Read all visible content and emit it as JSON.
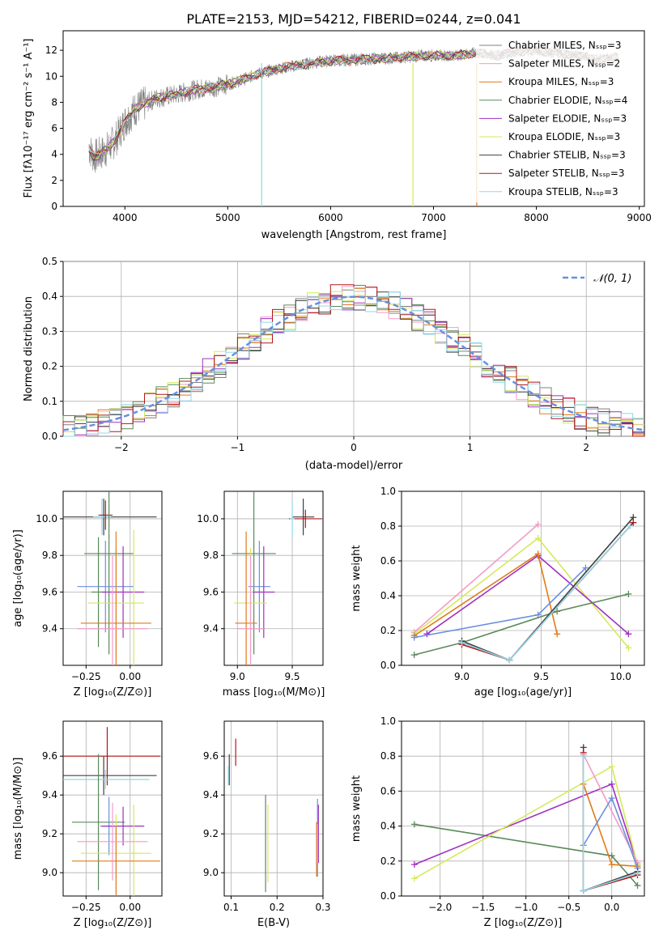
{
  "page": {
    "title": "PLATE=2153, MJD=54212, FIBERID=0244, z=0.041"
  },
  "colors": {
    "data": "#808080",
    "chabrier_miles": "#808080",
    "salpeter_miles": "#f39bc7",
    "kroupa_miles": "#e07b1a",
    "chabrier_elodie": "#5a8a5a",
    "salpeter_elodie": "#a030c0",
    "kroupa_elodie": "#d4ea5a",
    "chabrier_stelib": "#404040",
    "salpeter_stelib": "#b01818",
    "kroupa_stelib": "#8fd8e8",
    "blue": "#6a8fdf",
    "normal_curve": "#6a8fdf"
  },
  "chart_data": [
    {
      "id": "spectrum",
      "type": "line",
      "title": "PLATE=2153, MJD=54212, FIBERID=0244, z=0.041",
      "xlabel": "wavelength [Angstrom, rest frame]",
      "ylabel": "Flux [fλ10⁻¹⁷ erg cm⁻² s⁻¹ A⁻¹]",
      "xlim": [
        3400,
        9050
      ],
      "ylim": [
        0,
        13.5
      ],
      "xticks": [
        4000,
        5000,
        6000,
        7000,
        8000,
        9000
      ],
      "yticks": [
        0,
        2,
        4,
        6,
        8,
        10,
        12
      ],
      "grid": false,
      "legend_position": "right",
      "continuum": {
        "x": [
          3650,
          3700,
          3800,
          3900,
          4000,
          4100,
          4300,
          4500,
          4700,
          4900,
          5100,
          5300,
          5500,
          5800,
          6000,
          6300,
          6600,
          6900,
          7200,
          7400,
          7500,
          7600,
          7800,
          8000,
          8200,
          8400,
          8600,
          8800
        ],
        "y": [
          4.5,
          3.8,
          4.2,
          5.0,
          6.5,
          7.5,
          8.3,
          8.6,
          9.0,
          9.2,
          9.6,
          10.2,
          10.6,
          11.0,
          11.2,
          11.3,
          11.4,
          11.6,
          11.6,
          11.8,
          11.7,
          11.6,
          11.9,
          12.0,
          11.8,
          11.6,
          11.3,
          11.5
        ]
      },
      "series": [
        {
          "label": "Chabrier MILES, Nₛₛₚ=3",
          "color_key": "chabrier_miles"
        },
        {
          "label": "Salpeter MILES, Nₛₛₚ=2",
          "color_key": "salpeter_miles"
        },
        {
          "label": "Kroupa MILES, Nₛₛₚ=3",
          "color_key": "kroupa_miles"
        },
        {
          "label": "Chabrier ELODIE, Nₛₛₚ=4",
          "color_key": "chabrier_elodie"
        },
        {
          "label": "Salpeter ELODIE, Nₛₛₚ=3",
          "color_key": "salpeter_elodie"
        },
        {
          "label": "Kroupa ELODIE, Nₛₛₚ=3",
          "color_key": "kroupa_elodie"
        },
        {
          "label": "Chabrier STELIB, Nₛₛₚ=3",
          "color_key": "chabrier_stelib"
        },
        {
          "label": "Salpeter STELIB, Nₛₛₚ=3",
          "color_key": "salpeter_stelib"
        },
        {
          "label": "Kroupa STELIB, Nₛₛₚ=3",
          "color_key": "kroupa_stelib"
        }
      ]
    },
    {
      "id": "residuals",
      "type": "bar",
      "xlabel": "(data-model)/error",
      "ylabel": "Normed distribution",
      "xlim": [
        -2.5,
        2.5
      ],
      "ylim": [
        0,
        0.5
      ],
      "xticks": [
        -2,
        -1,
        0,
        1,
        2
      ],
      "yticks": [
        0.0,
        0.1,
        0.2,
        0.3,
        0.4,
        0.5
      ],
      "grid": true,
      "legend_position": "top-right",
      "normal_label": "𝒩(0, 1)"
    },
    {
      "id": "age_vs_Z",
      "type": "scatter",
      "xlabel": "Z [log₁₀(Z/Z⊙)]",
      "ylabel": "age  [log₁₀(age/yr)]",
      "xlim": [
        -0.38,
        0.18
      ],
      "ylim": [
        9.2,
        10.15
      ],
      "xticks": [
        -0.25,
        0.0
      ],
      "yticks": [
        9.4,
        9.6,
        9.8,
        10.0
      ],
      "grid": true,
      "points": [
        {
          "x": -0.15,
          "y": 10.01,
          "xerr": 0.3,
          "yerr": 0.1,
          "color_key": "chabrier_stelib"
        },
        {
          "x": -0.16,
          "y": 10.01,
          "xerr": 0.05,
          "yerr": 0.1,
          "color_key": "kroupa_stelib"
        },
        {
          "x": -0.14,
          "y": 10.02,
          "xerr": 0.04,
          "yerr": 0.08,
          "color_key": "salpeter_stelib"
        },
        {
          "x": -0.12,
          "y": 9.81,
          "xerr": 0.14,
          "yerr": 0.55,
          "color_key": "chabrier_elodie"
        },
        {
          "x": -0.18,
          "y": 9.6,
          "xerr": 0.04,
          "yerr": 0.3,
          "color_key": "chabrier_elodie"
        },
        {
          "x": -0.14,
          "y": 9.63,
          "xerr": 0.16,
          "yerr": 0.25,
          "color_key": "blue"
        },
        {
          "x": -0.04,
          "y": 9.6,
          "xerr": 0.12,
          "yerr": 0.25,
          "color_key": "salpeter_elodie"
        },
        {
          "x": -0.08,
          "y": 9.54,
          "xerr": 0.16,
          "yerr": 0.3,
          "color_key": "kroupa_elodie"
        },
        {
          "x": 0.02,
          "y": 9.54,
          "xerr": 0.02,
          "yerr": 0.4,
          "color_key": "kroupa_elodie"
        },
        {
          "x": -0.08,
          "y": 9.43,
          "xerr": 0.2,
          "yerr": 0.5,
          "color_key": "kroupa_miles"
        },
        {
          "x": -0.1,
          "y": 9.4,
          "xerr": 0.2,
          "yerr": 0.4,
          "color_key": "salpeter_miles"
        }
      ]
    },
    {
      "id": "age_vs_mass",
      "type": "scatter",
      "xlabel": "mass [log₁₀(M/M⊙)]",
      "ylabel": "",
      "xlim": [
        8.88,
        9.78
      ],
      "ylim": [
        9.2,
        10.15
      ],
      "xticks": [
        9.0,
        9.5
      ],
      "yticks": [
        9.4,
        9.6,
        9.8,
        10.0
      ],
      "grid": true,
      "points": [
        {
          "x": 9.6,
          "y": 10.01,
          "xerr": 0.1,
          "yerr": 0.1,
          "color_key": "chabrier_stelib"
        },
        {
          "x": 9.62,
          "y": 10.0,
          "xerr": 0.15,
          "yerr": 0.05,
          "color_key": "salpeter_stelib"
        },
        {
          "x": 9.5,
          "y": 10.0,
          "xerr": 0.02,
          "yerr": 0.1,
          "color_key": "kroupa_stelib"
        },
        {
          "x": 9.15,
          "y": 9.81,
          "xerr": 0.2,
          "yerr": 0.55,
          "color_key": "chabrier_elodie"
        },
        {
          "x": 9.2,
          "y": 9.63,
          "xerr": 0.1,
          "yerr": 0.25,
          "color_key": "blue"
        },
        {
          "x": 9.24,
          "y": 9.6,
          "xerr": 0.1,
          "yerr": 0.25,
          "color_key": "salpeter_elodie"
        },
        {
          "x": 9.12,
          "y": 9.54,
          "xerr": 0.15,
          "yerr": 0.3,
          "color_key": "kroupa_elodie"
        },
        {
          "x": 9.08,
          "y": 9.43,
          "xerr": 0.1,
          "yerr": 0.5,
          "color_key": "kroupa_miles"
        },
        {
          "x": 9.12,
          "y": 9.4,
          "xerr": 0.12,
          "yerr": 0.4,
          "color_key": "salpeter_miles"
        }
      ]
    },
    {
      "id": "weight_vs_age",
      "type": "line",
      "xlabel": "age  [log₁₀(age/yr)]",
      "ylabel": "mass weight",
      "xlim": [
        8.62,
        10.15
      ],
      "ylim": [
        0,
        1.0
      ],
      "xticks": [
        9.0,
        9.5,
        10.0
      ],
      "yticks": [
        0.0,
        0.2,
        0.4,
        0.6,
        0.8,
        1.0
      ],
      "grid": true,
      "series": [
        {
          "color_key": "salpeter_miles",
          "x": [
            8.7,
            9.48
          ],
          "y": [
            0.19,
            0.81
          ]
        },
        {
          "color_key": "kroupa_elodie",
          "x": [
            8.7,
            9.48,
            10.05
          ],
          "y": [
            0.18,
            0.73,
            0.1
          ]
        },
        {
          "color_key": "salpeter_elodie",
          "x": [
            8.78,
            9.48,
            10.05
          ],
          "y": [
            0.18,
            0.63,
            0.18
          ]
        },
        {
          "color_key": "kroupa_miles",
          "x": [
            8.7,
            9.48,
            9.6
          ],
          "y": [
            0.17,
            0.64,
            0.18
          ]
        },
        {
          "color_key": "blue",
          "x": [
            8.7,
            9.48,
            9.78
          ],
          "y": [
            0.16,
            0.29,
            0.56
          ]
        },
        {
          "color_key": "chabrier_elodie",
          "x": [
            8.7,
            9.0,
            9.6,
            10.05
          ],
          "y": [
            0.06,
            0.13,
            0.31,
            0.41
          ]
        },
        {
          "color_key": "chabrier_stelib",
          "x": [
            9.0,
            9.3,
            10.08
          ],
          "y": [
            0.14,
            0.03,
            0.85
          ]
        },
        {
          "color_key": "salpeter_stelib",
          "x": [
            9.0,
            9.3,
            10.08
          ],
          "y": [
            0.12,
            0.03,
            0.82
          ]
        },
        {
          "color_key": "kroupa_stelib",
          "x": [
            9.0,
            9.3,
            10.06
          ],
          "y": [
            0.13,
            0.03,
            0.8
          ]
        }
      ]
    },
    {
      "id": "mass_vs_Z",
      "type": "scatter",
      "xlabel": "Z [log₁₀(Z/Z⊙)]",
      "ylabel": "mass [log₁₀(M/M⊙)]",
      "xlim": [
        -0.38,
        0.18
      ],
      "ylim": [
        8.88,
        9.78
      ],
      "xticks": [
        -0.25,
        0.0
      ],
      "yticks": [
        9.0,
        9.2,
        9.4,
        9.6
      ],
      "grid": true,
      "points": [
        {
          "x": -0.13,
          "y": 9.6,
          "xerr": 0.3,
          "yerr": 0.15,
          "color_key": "salpeter_stelib"
        },
        {
          "x": -0.15,
          "y": 9.5,
          "xerr": 0.3,
          "yerr": 0.1,
          "color_key": "chabrier_stelib"
        },
        {
          "x": -0.14,
          "y": 9.48,
          "xerr": 0.25,
          "yerr": 0.05,
          "color_key": "kroupa_stelib"
        },
        {
          "x": -0.18,
          "y": 9.26,
          "xerr": 0.15,
          "yerr": 0.35,
          "color_key": "chabrier_elodie"
        },
        {
          "x": -0.12,
          "y": 9.24,
          "xerr": 0.05,
          "yerr": 0.15,
          "color_key": "blue"
        },
        {
          "x": -0.04,
          "y": 9.24,
          "xerr": 0.12,
          "yerr": 0.1,
          "color_key": "salpeter_elodie"
        },
        {
          "x": -0.08,
          "y": 9.1,
          "xerr": 0.2,
          "yerr": 0.2,
          "color_key": "kroupa_elodie"
        },
        {
          "x": 0.02,
          "y": 9.1,
          "xerr": 0.02,
          "yerr": 0.25,
          "color_key": "kroupa_elodie"
        },
        {
          "x": -0.08,
          "y": 9.06,
          "xerr": 0.25,
          "yerr": 0.18,
          "color_key": "kroupa_miles"
        },
        {
          "x": -0.1,
          "y": 9.16,
          "xerr": 0.2,
          "yerr": 0.2,
          "color_key": "salpeter_miles"
        }
      ]
    },
    {
      "id": "mass_vs_ebv",
      "type": "scatter",
      "xlabel": "E(B-V)",
      "ylabel": "",
      "xlim": [
        0.085,
        0.3
      ],
      "ylim": [
        8.88,
        9.78
      ],
      "xticks": [
        0.1,
        0.2,
        0.3
      ],
      "yticks": [
        9.0,
        9.2,
        9.4,
        9.6
      ],
      "grid": true,
      "points": [
        {
          "x": 0.11,
          "y": 9.62,
          "xerr": 0.0,
          "yerr": 0.07,
          "color_key": "salpeter_stelib"
        },
        {
          "x": 0.096,
          "y": 9.53,
          "xerr": 0.0,
          "yerr": 0.08,
          "color_key": "chabrier_stelib"
        },
        {
          "x": 0.094,
          "y": 9.5,
          "xerr": 0.0,
          "yerr": 0.05,
          "color_key": "kroupa_stelib"
        },
        {
          "x": 0.175,
          "y": 9.15,
          "xerr": 0.0,
          "yerr": 0.25,
          "color_key": "chabrier_elodie"
        },
        {
          "x": 0.18,
          "y": 9.15,
          "xerr": 0.0,
          "yerr": 0.2,
          "color_key": "kroupa_elodie"
        },
        {
          "x": 0.288,
          "y": 9.18,
          "xerr": 0.0,
          "yerr": 0.2,
          "color_key": "blue"
        },
        {
          "x": 0.29,
          "y": 9.2,
          "xerr": 0.0,
          "yerr": 0.15,
          "color_key": "salpeter_elodie"
        },
        {
          "x": 0.286,
          "y": 9.12,
          "xerr": 0.0,
          "yerr": 0.14,
          "color_key": "kroupa_miles"
        },
        {
          "x": 0.288,
          "y": 9.15,
          "xerr": 0.0,
          "yerr": 0.1,
          "color_key": "salpeter_miles"
        }
      ]
    },
    {
      "id": "weight_vs_Z",
      "type": "line",
      "xlabel": "Z [log₁₀(Z/Z⊙)]",
      "ylabel": "mass weight",
      "xlim": [
        -2.45,
        0.38
      ],
      "ylim": [
        0,
        1.0
      ],
      "xticks": [
        -2.0,
        -1.5,
        -1.0,
        -0.5,
        0.0
      ],
      "yticks": [
        0.0,
        0.2,
        0.4,
        0.6,
        0.8,
        1.0
      ],
      "grid": true,
      "series": [
        {
          "color_key": "chabrier_elodie",
          "x": [
            -2.3,
            0.0,
            0.3
          ],
          "y": [
            0.41,
            0.23,
            0.06
          ]
        },
        {
          "color_key": "salpeter_elodie",
          "x": [
            -2.3,
            0.0,
            0.3
          ],
          "y": [
            0.18,
            0.64,
            0.18
          ]
        },
        {
          "color_key": "kroupa_elodie",
          "x": [
            -2.3,
            0.0,
            0.3
          ],
          "y": [
            0.1,
            0.74,
            0.18
          ]
        },
        {
          "color_key": "salpeter_miles",
          "x": [
            -0.33,
            0.3
          ],
          "y": [
            0.81,
            0.19
          ]
        },
        {
          "color_key": "kroupa_miles",
          "x": [
            -0.33,
            0.0,
            0.3
          ],
          "y": [
            0.64,
            0.18,
            0.17
          ]
        },
        {
          "color_key": "blue",
          "x": [
            -0.33,
            0.0,
            0.3
          ],
          "y": [
            0.29,
            0.56,
            0.16
          ]
        },
        {
          "color_key": "chabrier_stelib",
          "x": [
            -0.33,
            -0.33,
            0.3
          ],
          "y": [
            0.85,
            0.03,
            0.14
          ]
        },
        {
          "color_key": "salpeter_stelib",
          "x": [
            -0.33,
            -0.33,
            0.3
          ],
          "y": [
            0.82,
            0.03,
            0.12
          ]
        },
        {
          "color_key": "kroupa_stelib",
          "x": [
            -0.33,
            -0.33,
            0.3
          ],
          "y": [
            0.8,
            0.03,
            0.13
          ]
        }
      ]
    }
  ]
}
